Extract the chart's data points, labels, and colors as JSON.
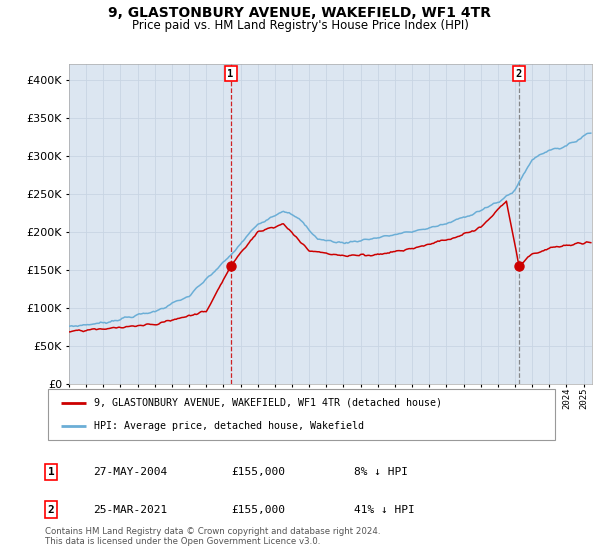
{
  "title": "9, GLASTONBURY AVENUE, WAKEFIELD, WF1 4TR",
  "subtitle": "Price paid vs. HM Land Registry's House Price Index (HPI)",
  "legend_label_red": "9, GLASTONBURY AVENUE, WAKEFIELD, WF1 4TR (detached house)",
  "legend_label_blue": "HPI: Average price, detached house, Wakefield",
  "sale1_date": "27-MAY-2004",
  "sale1_price": 155000,
  "sale1_pct": "8% ↓ HPI",
  "sale2_date": "25-MAR-2021",
  "sale2_price": 155000,
  "sale2_pct": "41% ↓ HPI",
  "footer": "Contains HM Land Registry data © Crown copyright and database right 2024.\nThis data is licensed under the Open Government Licence v3.0.",
  "ylim": [
    0,
    420000
  ],
  "yticks": [
    0,
    50000,
    100000,
    150000,
    200000,
    250000,
    300000,
    350000,
    400000
  ],
  "hpi_color": "#6baed6",
  "red_color": "#cc0000",
  "bg_color": "#dce6f1",
  "grid_color": "#c8d4e4",
  "sale1_year": 2004.42,
  "sale2_year": 2021.22,
  "xmin": 1995,
  "xmax": 2025.5
}
